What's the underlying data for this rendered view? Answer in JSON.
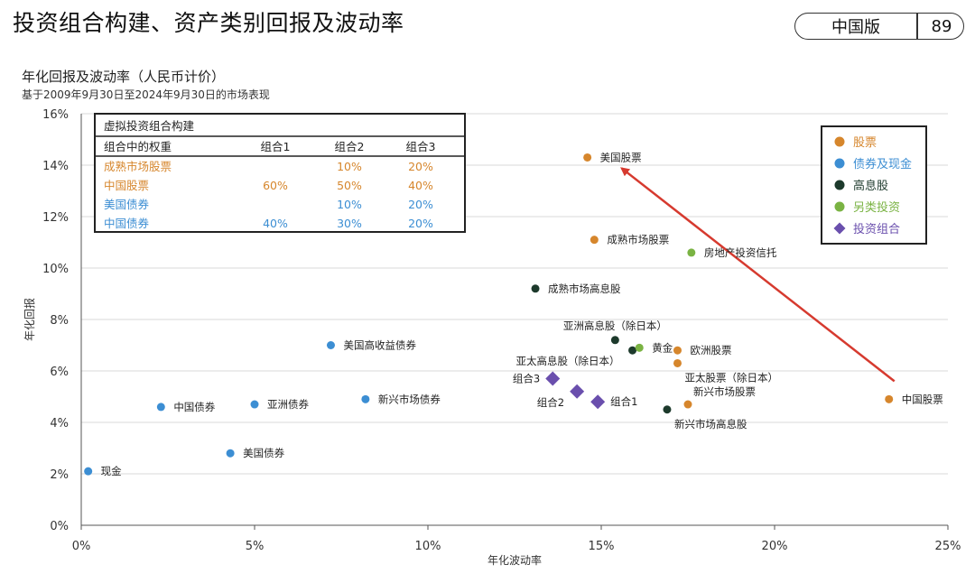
{
  "header": {
    "title": "投资组合构建、资产类别回报及波动率",
    "edition": "中国版",
    "page_number": "89"
  },
  "colors": {
    "equity": "#d6862c",
    "bond": "#3c8ed3",
    "dividend": "#1d3a2c",
    "alternative": "#7ab343",
    "portfolio": "#6a4fad",
    "arrow": "#d63a2f",
    "grid": "#d9d9d9"
  },
  "chart_data": {
    "type": "scatter",
    "title": "年化回报及波动率（人民币计价）",
    "subtitle": "基于2009年9月30日至2024年9月30日的市场表现",
    "xlabel": "年化波动率",
    "ylabel": "年化回报",
    "xlim": [
      0,
      25
    ],
    "ylim": [
      0,
      16
    ],
    "x_ticks": [
      "0%",
      "5%",
      "10%",
      "15%",
      "20%",
      "25%"
    ],
    "y_ticks": [
      "0%",
      "2%",
      "4%",
      "6%",
      "8%",
      "10%",
      "12%",
      "14%",
      "16%"
    ],
    "grid": "horizontal",
    "legend_position": "top-right",
    "legend": [
      {
        "label": "股票",
        "key": "equity",
        "shape": "circle"
      },
      {
        "label": "债券及现金",
        "key": "bond",
        "shape": "circle"
      },
      {
        "label": "高息股",
        "key": "dividend",
        "shape": "circle"
      },
      {
        "label": "另类投资",
        "key": "alternative",
        "shape": "circle"
      },
      {
        "label": "投资组合",
        "key": "portfolio",
        "shape": "diamond"
      }
    ],
    "points": [
      {
        "label": "美国股票",
        "x": 14.6,
        "y": 14.3,
        "group": "equity",
        "label_pos": "right"
      },
      {
        "label": "成熟市场股票",
        "x": 14.8,
        "y": 11.1,
        "group": "equity",
        "label_pos": "right"
      },
      {
        "label": "欧洲股票",
        "x": 17.2,
        "y": 6.8,
        "group": "equity",
        "label_pos": "right"
      },
      {
        "label": "亚太股票（除日本）",
        "x": 17.2,
        "y": 6.3,
        "group": "equity",
        "label_pos": "right-below"
      },
      {
        "label": "新兴市场股票",
        "x": 17.5,
        "y": 4.7,
        "group": "equity",
        "label_pos": "right-above"
      },
      {
        "label": "中国股票",
        "x": 23.3,
        "y": 4.9,
        "group": "equity",
        "label_pos": "right"
      },
      {
        "label": "现金",
        "x": 0.2,
        "y": 2.1,
        "group": "bond",
        "label_pos": "right"
      },
      {
        "label": "美国债券",
        "x": 4.3,
        "y": 2.8,
        "group": "bond",
        "label_pos": "right"
      },
      {
        "label": "中国债券",
        "x": 2.3,
        "y": 4.6,
        "group": "bond",
        "label_pos": "right"
      },
      {
        "label": "亚洲债券",
        "x": 5.0,
        "y": 4.7,
        "group": "bond",
        "label_pos": "right"
      },
      {
        "label": "新兴市场债券",
        "x": 8.2,
        "y": 4.9,
        "group": "bond",
        "label_pos": "right"
      },
      {
        "label": "美国高收益债券",
        "x": 7.2,
        "y": 7.0,
        "group": "bond",
        "label_pos": "right"
      },
      {
        "label": "成熟市场高息股",
        "x": 13.1,
        "y": 9.2,
        "group": "dividend",
        "label_pos": "right"
      },
      {
        "label": "亚洲高息股（除日本）",
        "x": 15.4,
        "y": 7.2,
        "group": "dividend",
        "label_pos": "above"
      },
      {
        "label": "亚太高息股（除日本）",
        "x": 15.9,
        "y": 6.8,
        "group": "dividend",
        "label_pos": "left-below"
      },
      {
        "label": "新兴市场高息股",
        "x": 16.9,
        "y": 4.5,
        "group": "dividend",
        "label_pos": "right-below"
      },
      {
        "label": "房地产投资信托",
        "x": 17.6,
        "y": 10.6,
        "group": "alternative",
        "label_pos": "right"
      },
      {
        "label": "黄金",
        "x": 16.1,
        "y": 6.9,
        "group": "alternative",
        "label_pos": "right"
      },
      {
        "label": "组合1",
        "x": 14.9,
        "y": 4.8,
        "group": "portfolio",
        "label_pos": "right"
      },
      {
        "label": "组合2",
        "x": 14.3,
        "y": 5.2,
        "group": "portfolio",
        "label_pos": "left-below"
      },
      {
        "label": "组合3",
        "x": 13.6,
        "y": 5.7,
        "group": "portfolio",
        "label_pos": "left"
      }
    ],
    "arrow": {
      "from": "中国股票",
      "to": "美国股票"
    },
    "inset_table": {
      "title": "虚拟投资组合构建",
      "columns": [
        "组合中的权重",
        "组合1",
        "组合2",
        "组合3"
      ],
      "rows": [
        {
          "name": "成熟市场股票",
          "group": "equity",
          "values": [
            "",
            "10%",
            "20%"
          ]
        },
        {
          "name": "中国股票",
          "group": "equity",
          "values": [
            "60%",
            "50%",
            "40%"
          ]
        },
        {
          "name": "美国债券",
          "group": "bond",
          "values": [
            "",
            "10%",
            "20%"
          ]
        },
        {
          "name": "中国债券",
          "group": "bond",
          "values": [
            "40%",
            "30%",
            "20%"
          ]
        }
      ]
    }
  }
}
